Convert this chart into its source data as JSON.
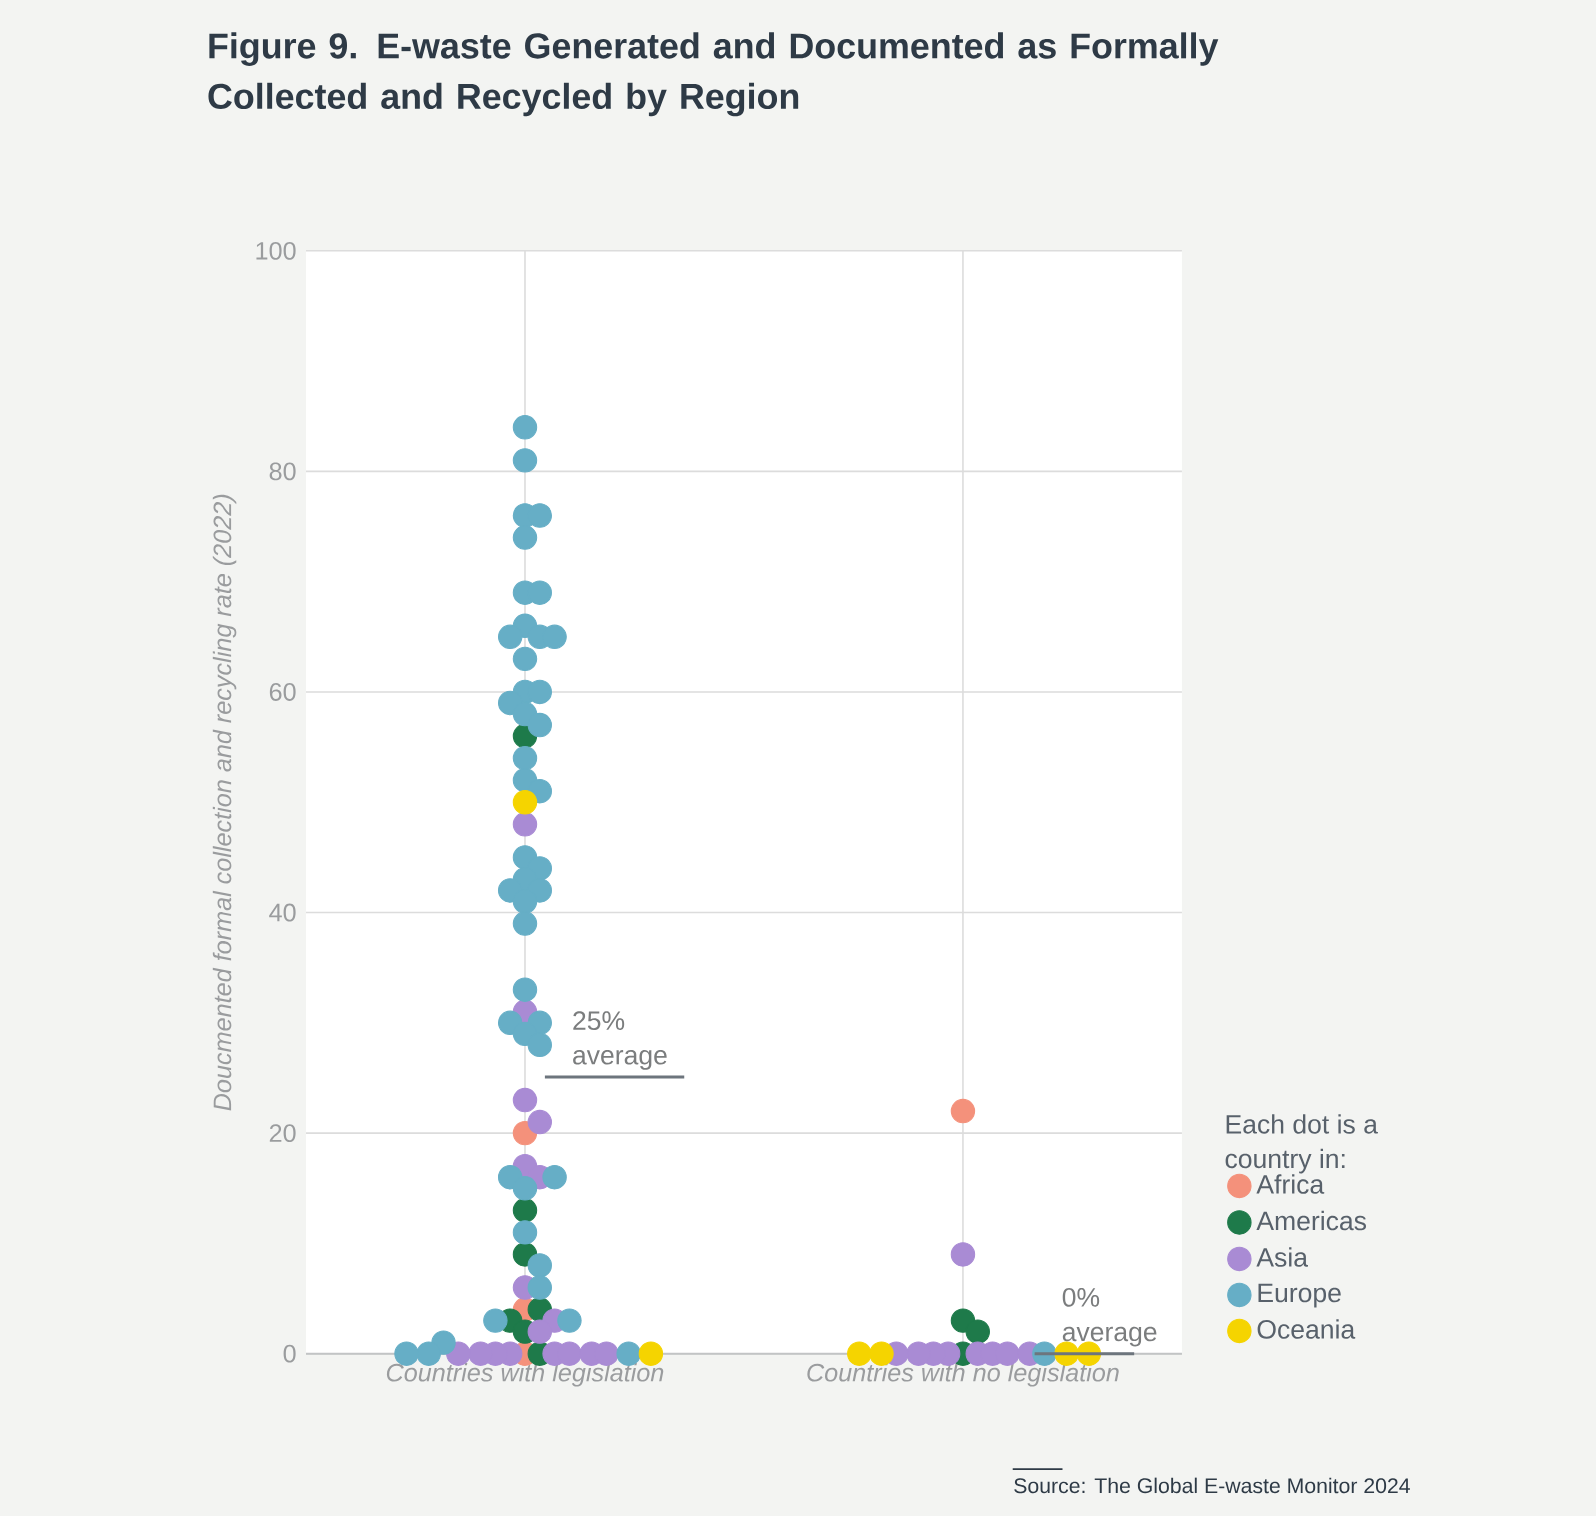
{
  "chart_data": {
    "type": "scatter",
    "title": "Figure 9. E-waste Generated and Documented as Formally Collected and Recycled by Region",
    "ylabel": "Doucmented formal collection and recycling rate (2022)",
    "legend_title": "Each dot is a country in:",
    "categories": [
      "Countries with legislation",
      "Countries with no legislation"
    ],
    "ylim": [
      0,
      100
    ],
    "yticks": [
      0,
      20,
      40,
      60,
      80,
      100
    ],
    "grid": true,
    "legend": "bottom right",
    "series": [
      {
        "name": "Africa",
        "color": "#f4917b",
        "x": [
          "Countries with legislation",
          "Countries with legislation",
          "Countries with legislation",
          "Countries with no legislation"
        ],
        "values": [
          20,
          4,
          0,
          22
        ]
      },
      {
        "name": "Americas",
        "color": "#1e7a4a",
        "x": [
          "Countries with legislation",
          "Countries with legislation",
          "Countries with legislation",
          "Countries with legislation",
          "Countries with legislation",
          "Countries with legislation",
          "Countries with legislation",
          "Countries with no legislation",
          "Countries with no legislation",
          "Countries with no legislation"
        ],
        "values": [
          56,
          13,
          9,
          4,
          3,
          2,
          0,
          3,
          2,
          0
        ]
      },
      {
        "name": "Asia",
        "color": "#a98bd4",
        "x": [
          "Countries with legislation",
          "Countries with legislation",
          "Countries with legislation",
          "Countries with legislation",
          "Countries with legislation",
          "Countries with legislation",
          "Countries with legislation",
          "Countries with legislation",
          "Countries with legislation",
          "Countries with legislation",
          "Countries with legislation",
          "Countries with legislation",
          "Countries with legislation",
          "Countries with legislation",
          "Countries with legislation",
          "Countries with legislation",
          "Countries with legislation",
          "Countries with no legislation",
          "Countries with no legislation",
          "Countries with no legislation",
          "Countries with no legislation",
          "Countries with no legislation",
          "Countries with no legislation",
          "Countries with no legislation",
          "Countries with no legislation",
          "Countries with no legislation"
        ],
        "values": [
          48,
          31,
          23,
          21,
          17,
          16,
          6,
          3,
          2,
          0,
          0,
          0,
          0,
          0,
          0,
          0,
          0,
          9,
          0,
          0,
          0,
          0,
          0,
          0,
          0,
          0
        ]
      },
      {
        "name": "Europe",
        "color": "#66aec6",
        "x": [
          "Countries with legislation",
          "Countries with legislation",
          "Countries with legislation",
          "Countries with legislation",
          "Countries with legislation",
          "Countries with legislation",
          "Countries with legislation",
          "Countries with legislation",
          "Countries with legislation",
          "Countries with legislation",
          "Countries with legislation",
          "Countries with legislation",
          "Countries with legislation",
          "Countries with legislation",
          "Countries with legislation",
          "Countries with legislation",
          "Countries with legislation",
          "Countries with legislation",
          "Countries with legislation",
          "Countries with legislation",
          "Countries with legislation",
          "Countries with legislation",
          "Countries with legislation",
          "Countries with legislation",
          "Countries with legislation",
          "Countries with legislation",
          "Countries with legislation",
          "Countries with legislation",
          "Countries with legislation",
          "Countries with legislation",
          "Countries with legislation",
          "Countries with legislation",
          "Countries with legislation",
          "Countries with legislation",
          "Countries with legislation",
          "Countries with legislation",
          "Countries with legislation",
          "Countries with legislation",
          "Countries with legislation",
          "Countries with legislation",
          "Countries with legislation",
          "Countries with legislation",
          "Countries with legislation",
          "Countries with legislation",
          "Countries with no legislation"
        ],
        "values": [
          84,
          81,
          76,
          76,
          74,
          69,
          69,
          66,
          65,
          65,
          65,
          63,
          60,
          60,
          59,
          58,
          57,
          54,
          52,
          51,
          45,
          44,
          43,
          42,
          42,
          41,
          39,
          33,
          30,
          30,
          29,
          28,
          16,
          16,
          15,
          11,
          8,
          6,
          3,
          3,
          1,
          0,
          0,
          0,
          0
        ]
      },
      {
        "name": "Oceania",
        "color": "#f5d400",
        "x": [
          "Countries with legislation",
          "Countries with legislation",
          "Countries with no legislation",
          "Countries with no legislation",
          "Countries with no legislation",
          "Countries with no legislation"
        ],
        "values": [
          50,
          0,
          0,
          0,
          0,
          0
        ]
      }
    ],
    "annotations": [
      "25% average",
      "0% average",
      "Source: The Global E-waste Monitor 2024"
    ]
  }
}
